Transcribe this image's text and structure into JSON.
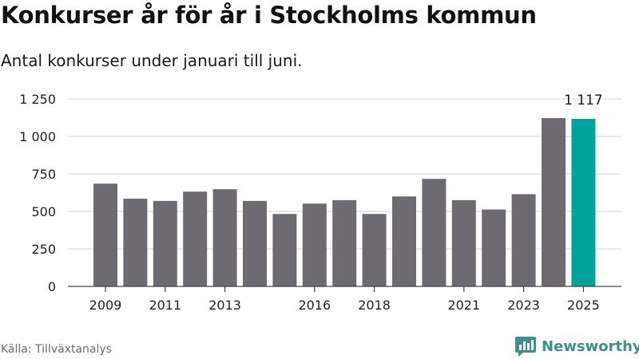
{
  "header": {
    "title": "Konkurser år för år i Stockholms kommun",
    "subtitle": "Antal konkurser under januari till juni."
  },
  "footer": {
    "source": "Källa: Tillväxtanalys",
    "brand": "Newsworthy"
  },
  "colors": {
    "bar": "#6d6b71",
    "highlight": "#00a39a",
    "grid": "#d6d6d6",
    "axis": "#444444",
    "brand": "#3d8f8b"
  },
  "chart_data": {
    "type": "bar",
    "title": "Konkurser år för år i Stockholms kommun",
    "subtitle": "Antal konkurser under januari till juni.",
    "categories": [
      2009,
      2010,
      2011,
      2012,
      2013,
      2014,
      2015,
      2016,
      2017,
      2018,
      2019,
      2020,
      2021,
      2022,
      2023,
      2024,
      2025
    ],
    "values": [
      685,
      585,
      570,
      632,
      648,
      570,
      483,
      552,
      575,
      483,
      600,
      717,
      575,
      513,
      615,
      1122,
      1117
    ],
    "highlight_index": 16,
    "highlight_label": "1 117",
    "xtick_labels": [
      "2009",
      "",
      "2011",
      "",
      "2013",
      "",
      "",
      "2016",
      "",
      "2018",
      "",
      "",
      "2021",
      "",
      "2023",
      "",
      "2025"
    ],
    "yticks": [
      0,
      250,
      500,
      750,
      1000,
      1250
    ],
    "ytick_labels": [
      "0",
      "250",
      "500",
      "750",
      "1 000",
      "1 250"
    ],
    "ylim": [
      0,
      1250
    ],
    "xlabel": "",
    "ylabel": "",
    "grid": true
  }
}
